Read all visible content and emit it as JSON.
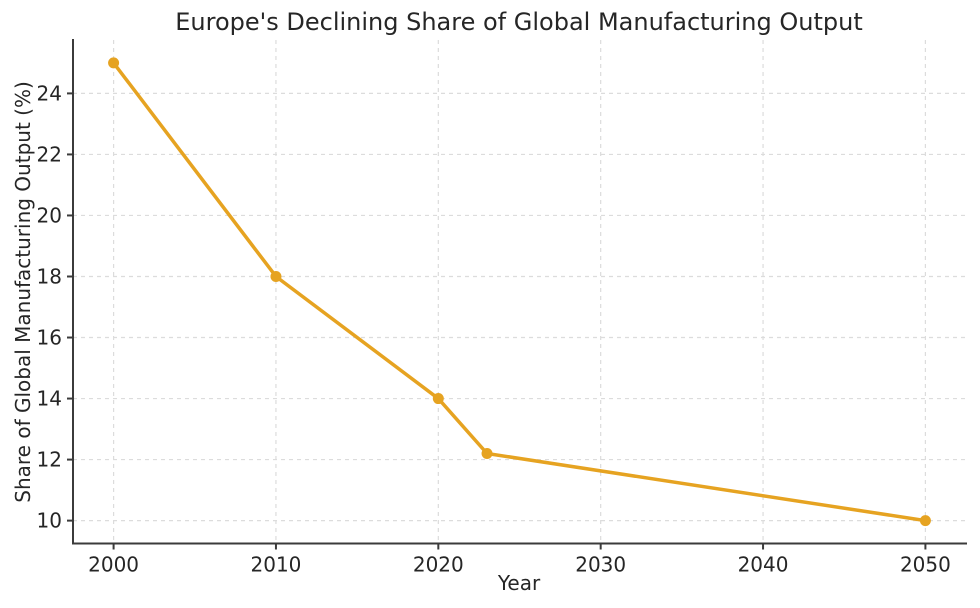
{
  "chart_data": {
    "type": "line",
    "title": "Europe's Declining Share of Global Manufacturing Output",
    "xlabel": "Year",
    "ylabel": "Share of Global Manufacturing Output (%)",
    "x": [
      2000,
      2010,
      2020,
      2023,
      2050
    ],
    "y": [
      25,
      18,
      14,
      12.2,
      10
    ],
    "xticks": [
      2000,
      2010,
      2020,
      2030,
      2040,
      2050
    ],
    "yticks": [
      10,
      12,
      14,
      16,
      18,
      20,
      22,
      24
    ],
    "xlim": [
      1997.5,
      2052.5
    ],
    "ylim": [
      9.25,
      25.75
    ],
    "grid": true,
    "grid_style": "dashed",
    "legend": false,
    "line_color": "#E6A321",
    "marker_color": "#E6A321",
    "marker": "circle",
    "grid_color": "#DCDCDC",
    "axis_color": "#3B3B3B",
    "text_color": "#262626",
    "background_color": "#FFFFFF"
  }
}
